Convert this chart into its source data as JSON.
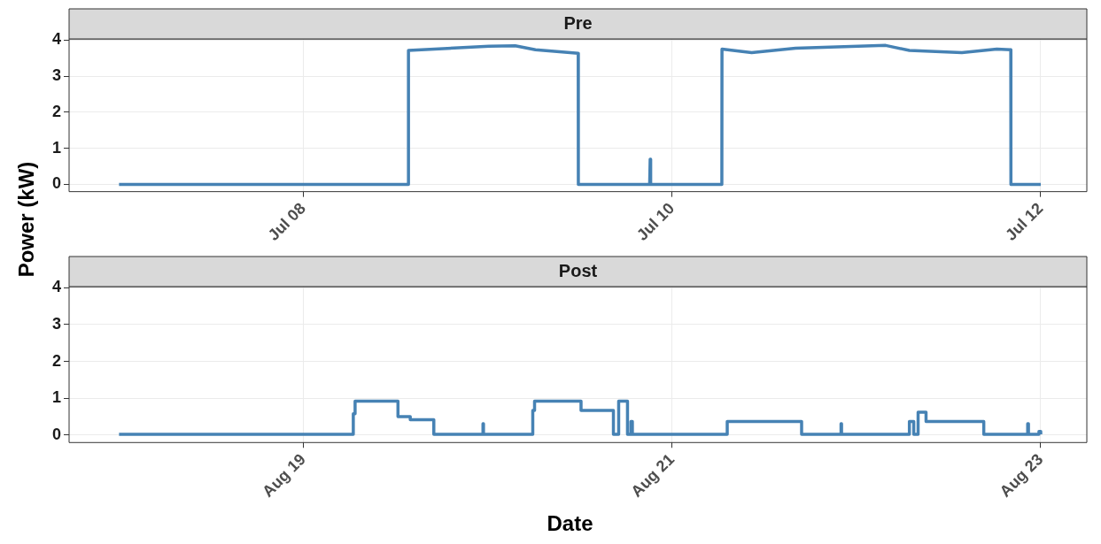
{
  "chart_data": [
    {
      "type": "line",
      "title": "Pre",
      "ylabel": "Power (kW)",
      "grid": true,
      "marker": "none",
      "line_style": "solid",
      "xlim": [
        "--07-06T17:30",
        "--07-12T06:00"
      ],
      "xticks": [
        {
          "value": "--07-08",
          "label": "Jul 08"
        },
        {
          "value": "--07-10",
          "label": "Jul 10"
        },
        {
          "value": "--07-12",
          "label": "Jul 12"
        }
      ],
      "ylim": [
        -0.2,
        4.03
      ],
      "yticks": [
        0,
        1,
        2,
        3,
        4
      ],
      "series": [
        {
          "color": "#4682b4",
          "x": [
            "--07-07T00:00",
            "--07-08T13:40",
            "--07-08T13:41",
            "--07-09T00:10",
            "--07-09T03:35",
            "--07-09T06:13",
            "--07-09T11:47",
            "--07-09T11:48",
            "--07-09T21:05",
            "--07-09T21:09",
            "--07-09T21:13",
            "--07-10T06:29",
            "--07-10T06:30",
            "--07-10T10:22",
            "--07-10T16:05",
            "--07-11T03:49",
            "--07-11T06:54",
            "--07-11T13:44",
            "--07-11T18:17",
            "--07-11T20:06",
            "--07-11T20:07",
            "--07-12T00:00"
          ],
          "values": [
            0,
            0,
            3.71,
            3.83,
            3.84,
            3.73,
            3.63,
            0,
            0,
            0.7,
            0,
            0,
            3.75,
            3.65,
            3.77,
            3.85,
            3.71,
            3.65,
            3.75,
            3.73,
            0,
            0
          ]
        }
      ]
    },
    {
      "type": "step",
      "title": "Post",
      "xlabel": "Date",
      "grid": true,
      "marker": "none",
      "line_style": "solid",
      "xlim": [
        "--08-17T17:30",
        "--08-23T06:00"
      ],
      "xticks": [
        {
          "value": "--08-19",
          "label": "Aug 19"
        },
        {
          "value": "--08-21",
          "label": "Aug 21"
        },
        {
          "value": "--08-23",
          "label": "Aug 23"
        }
      ],
      "ylim": [
        -0.2,
        4.03
      ],
      "yticks": [
        0,
        1,
        2,
        3,
        4
      ],
      "series": [
        {
          "color": "#4682b4",
          "x": [
            "--08-18T00:00",
            "--08-19T06:30",
            "--08-19T06:44",
            "--08-19T12:19",
            "--08-19T13:55",
            "--08-19T16:59",
            "--08-19T23:23",
            "--08-19T23:27",
            "--08-20T05:52",
            "--08-20T06:06",
            "--08-20T12:09",
            "--08-20T16:22",
            "--08-20T17:03",
            "--08-20T18:12",
            "--08-20T18:39",
            "--08-20T18:50",
            "--08-21T07:11",
            "--08-21T16:52",
            "--08-21T22:00",
            "--08-21T22:04",
            "--08-22T06:54",
            "--08-22T07:28",
            "--08-22T08:02",
            "--08-22T09:04",
            "--08-22T16:35",
            "--08-22T22:18",
            "--08-22T22:24",
            "--08-22T23:46",
            "--08-23T00:00"
          ],
          "values": [
            0.02,
            0.58,
            0.92,
            0.5,
            0.42,
            0.02,
            0.31,
            0.02,
            0.67,
            0.92,
            0.67,
            0.02,
            0.92,
            0.02,
            0.37,
            0.02,
            0.37,
            0.02,
            0.31,
            0.02,
            0.37,
            0.02,
            0.62,
            0.37,
            0.02,
            0.31,
            0.02,
            0.1,
            0.02
          ]
        }
      ]
    }
  ]
}
